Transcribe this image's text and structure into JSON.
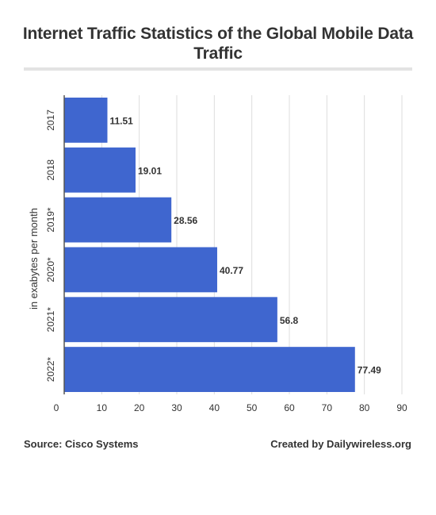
{
  "chart_data": {
    "type": "bar",
    "orientation": "horizontal",
    "title": "Internet Traffic Statistics of the Global Mobile Data Traffic",
    "ylabel": "in exabytes per month",
    "xlabel": "",
    "categories": [
      "2017",
      "2018",
      "2019*",
      "2020*",
      "2021*",
      "2022*"
    ],
    "values": [
      11.51,
      19.01,
      28.56,
      40.77,
      56.8,
      77.49
    ],
    "data_labels": [
      "11.51",
      "19.01",
      "28.56",
      "40.77",
      "56.8",
      "77.49"
    ],
    "xlim": [
      0,
      90
    ],
    "xticks": [
      0,
      10,
      20,
      30,
      40,
      50,
      60,
      70,
      80,
      90
    ],
    "grid": true,
    "bar_color": "#3f66cf"
  },
  "footer": {
    "source": "Source: Cisco Systems",
    "credit": "Created by Dailywireless.org"
  }
}
